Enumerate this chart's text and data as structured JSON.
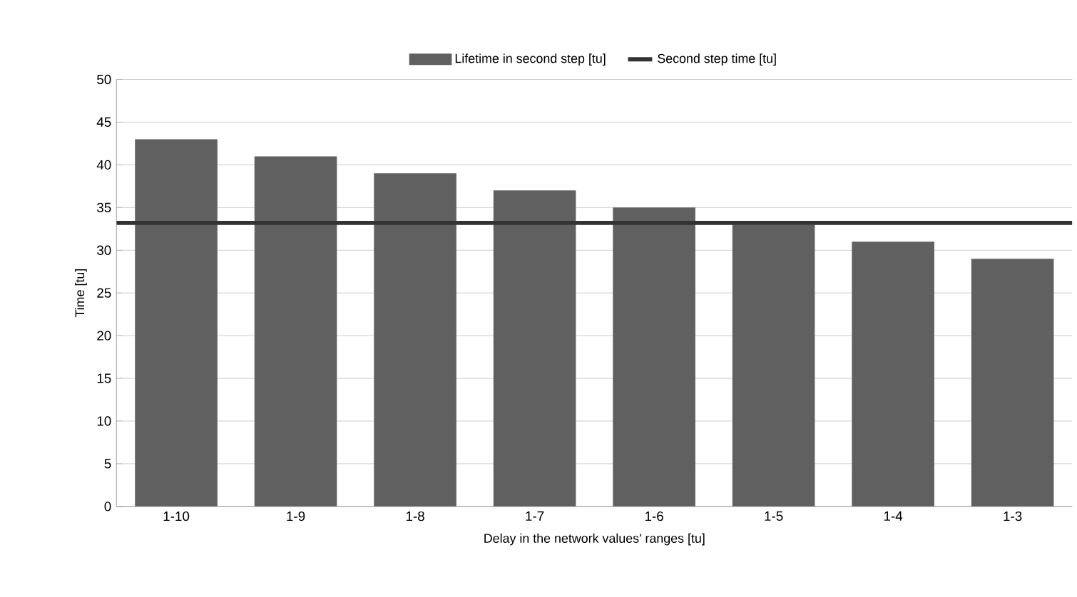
{
  "chart_data": {
    "type": "bar",
    "xlabel": "Delay in the network values' ranges [tu]",
    "ylabel": "Time [tu]",
    "categories": [
      "1-10",
      "1-9",
      "1-8",
      "1-7",
      "1-6",
      "1-5",
      "1-4",
      "1-3"
    ],
    "series": [
      {
        "name": "Lifetime in second step [tu]",
        "color": "#606060",
        "values": [
          43,
          41,
          39,
          37,
          35,
          33,
          31,
          29
        ]
      }
    ],
    "ref_lines": [
      {
        "axis": "y",
        "value": 33.2,
        "label": "Second step time [tu]",
        "color": "#333333"
      }
    ],
    "ylim": [
      0,
      50
    ],
    "yticks": [
      0,
      5,
      10,
      15,
      20,
      25,
      30,
      35,
      40,
      45,
      50
    ],
    "grid": "y",
    "legend": "top"
  }
}
